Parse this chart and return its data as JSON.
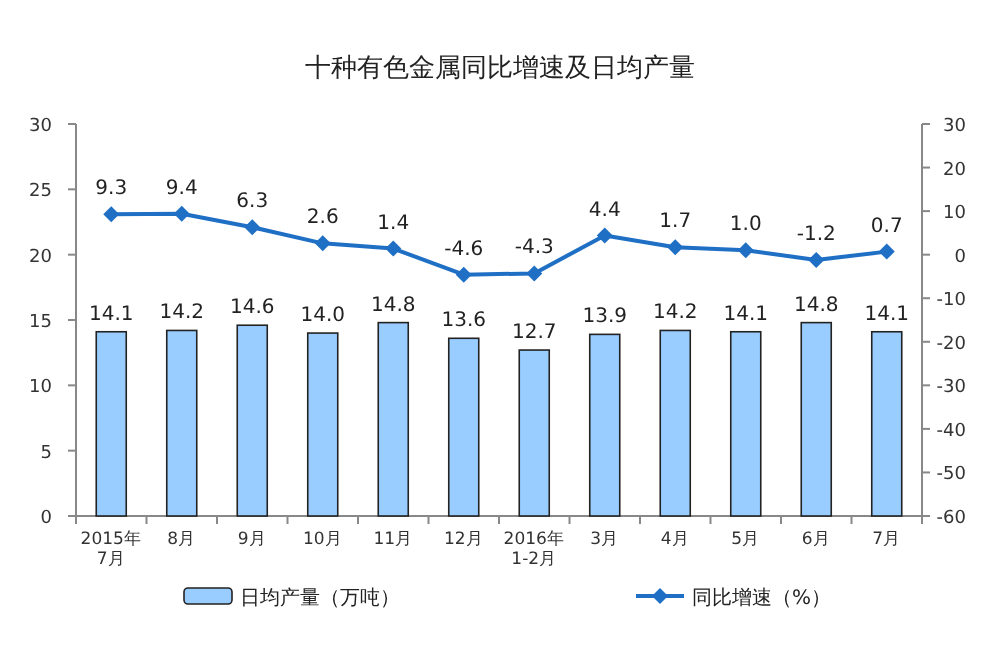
{
  "chart_data": {
    "type": "bar",
    "title": "十种有色金属同比增速及日均产量",
    "categories": [
      "2015年\n7月",
      "8月",
      "9月",
      "10月",
      "11月",
      "12月",
      "2016年\n1-2月",
      "3月",
      "4月",
      "5月",
      "6月",
      "7月"
    ],
    "series": [
      {
        "name": "日均产量（万吨）",
        "color": "#99ccff",
        "values": [
          14.1,
          14.2,
          14.6,
          14.0,
          14.8,
          13.6,
          12.7,
          13.9,
          14.2,
          14.1,
          14.8,
          14.1
        ],
        "value_labels": [
          "14.1",
          "14.2",
          "14.6",
          "14.0",
          "14.8",
          "13.6",
          "12.7",
          "13.9",
          "14.2",
          "14.1",
          "14.8",
          "14.1"
        ]
      },
      {
        "name": "同比增速（%）",
        "type": "line",
        "axis": "y2",
        "color": "#1f6fc5",
        "marker": "diamond",
        "values": [
          9.3,
          9.4,
          6.3,
          2.6,
          1.4,
          -4.6,
          -4.3,
          4.4,
          1.7,
          1.0,
          -1.2,
          0.7
        ],
        "value_labels": [
          "9.3",
          "9.4",
          "6.3",
          "2.6",
          "1.4",
          "-4.6",
          "-4.3",
          "4.4",
          "1.7",
          "1.0",
          "-1.2",
          "0.7"
        ]
      }
    ],
    "ylim": [
      0,
      30
    ],
    "yticks": [
      0,
      5,
      10,
      15,
      20,
      25,
      30
    ],
    "y2lim": [
      -60,
      30
    ],
    "y2ticks": [
      -60,
      -50,
      -40,
      -30,
      -20,
      -10,
      0,
      10,
      20,
      30
    ],
    "grid": false,
    "legend": "bottom"
  }
}
